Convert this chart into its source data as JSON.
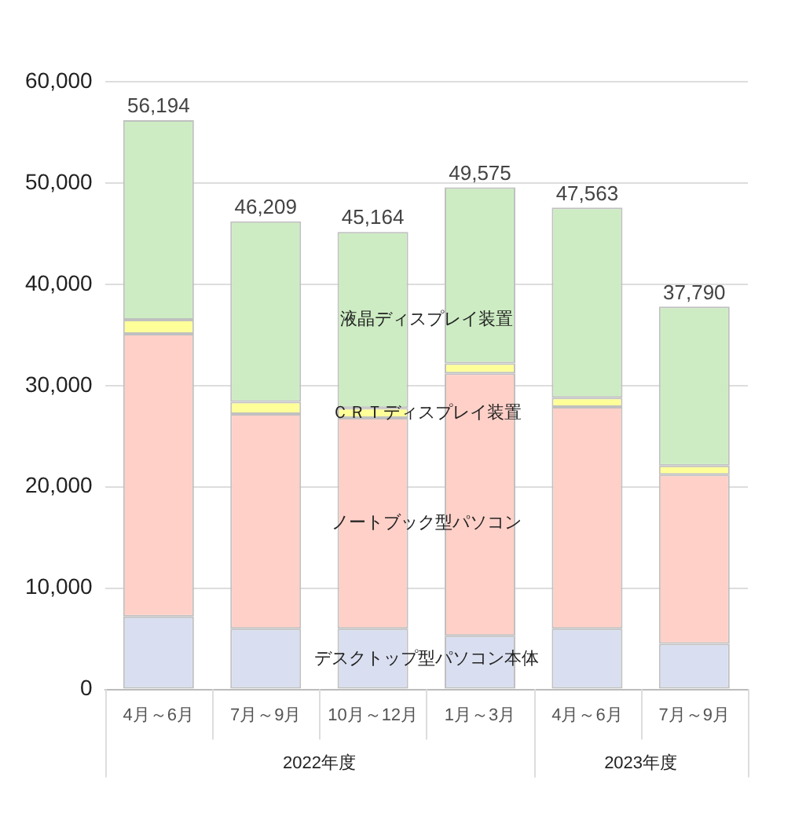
{
  "chart_data": {
    "type": "bar",
    "stacked": true,
    "categories": [
      "4月～6月",
      "7月～9月",
      "10月～12月",
      "1月～3月",
      "4月～6月",
      "7月～9月"
    ],
    "series": [
      {
        "name": "デスクトップ型パソコン本体",
        "color": "#d9dff0",
        "values": [
          7200,
          6000,
          6000,
          5300,
          6000,
          4500
        ]
      },
      {
        "name": "ノートブック型パソコン",
        "color": "#ffd0c8",
        "values": [
          27900,
          21200,
          20800,
          25900,
          21900,
          16700
        ]
      },
      {
        "name": "ＣＲＴディスプレイ装置",
        "color": "#ffff99",
        "values": [
          1400,
          1200,
          1000,
          1000,
          900,
          900
        ]
      },
      {
        "name": "液晶ディスプレイ装置",
        "color": "#cdecc3",
        "values": [
          19694,
          17809,
          17364,
          17375,
          18763,
          15690
        ]
      }
    ],
    "totals": [
      "56,194",
      "46,209",
      "45,164",
      "49,575",
      "47,563",
      "37,790"
    ],
    "ylim": [
      0,
      60000
    ],
    "yticks": [
      0,
      {
        "value": 10000,
        "label": "10,000"
      },
      {
        "value": 20000,
        "label": "20,000"
      },
      {
        "value": 30000,
        "label": "30,000"
      },
      {
        "value": 40000,
        "label": "40,000"
      },
      {
        "value": 50000,
        "label": "50,000"
      },
      {
        "value": 60000,
        "label": "60,000"
      }
    ],
    "grid": "y",
    "legend": false,
    "annotations": [
      "2022年度",
      "2023年度"
    ]
  }
}
